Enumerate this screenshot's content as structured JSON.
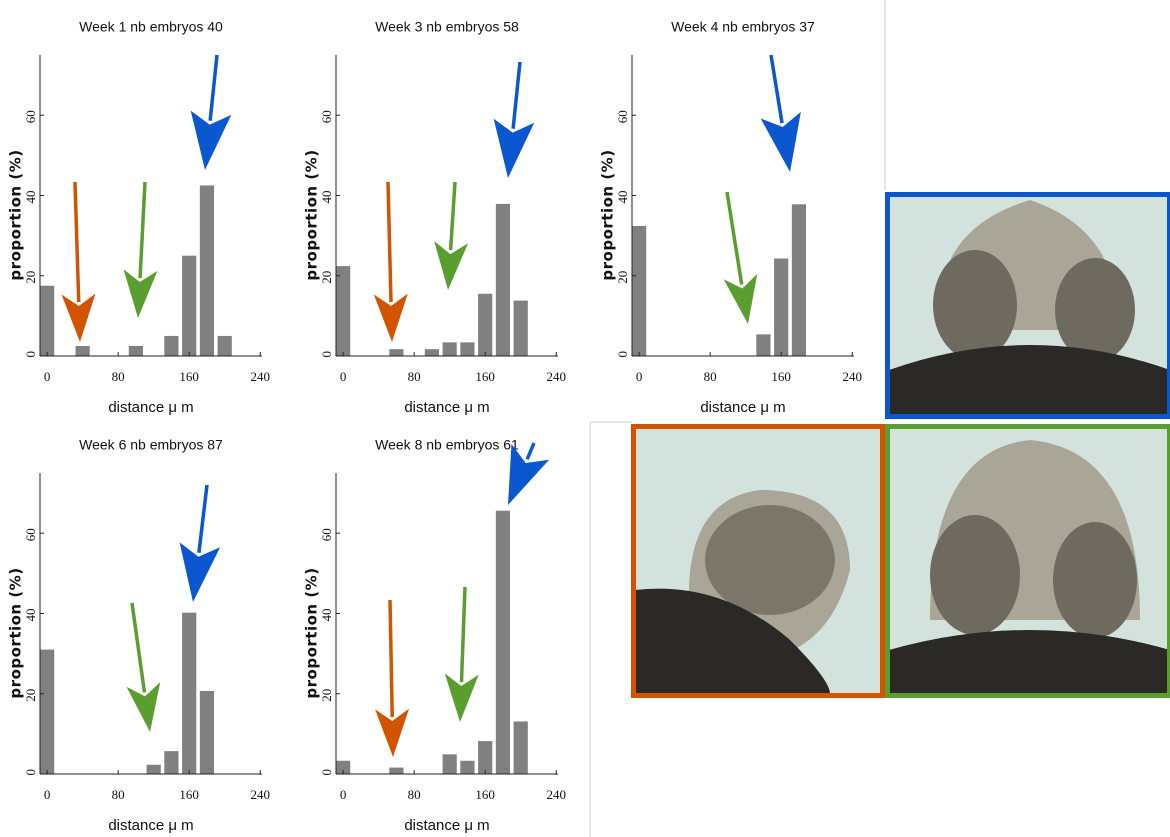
{
  "chart_data": [
    {
      "type": "bar",
      "title": "Week 1 nb embryos 40",
      "xlabel": "distance μ m",
      "ylabel": "proportion (%)",
      "color": "#808080",
      "x": [
        0,
        20,
        40,
        60,
        80,
        100,
        120,
        140,
        160,
        180,
        200
      ],
      "values": [
        17.5,
        0,
        2.5,
        0,
        0,
        2.5,
        0,
        5,
        25,
        42.5,
        5
      ],
      "xlim": [
        -8,
        242
      ],
      "ylim": [
        0,
        75
      ],
      "xticks": [
        0,
        80,
        160,
        240
      ],
      "yticks": [
        0,
        20,
        40,
        60
      ]
    },
    {
      "type": "bar",
      "title": "Week 3 nb embryos 58",
      "xlabel": "distance μ m",
      "ylabel": "proportion (%)",
      "color": "#808080",
      "x": [
        0,
        20,
        40,
        60,
        80,
        100,
        120,
        140,
        160,
        180,
        200
      ],
      "values": [
        22.4,
        0,
        0,
        1.7,
        0,
        1.7,
        3.4,
        3.4,
        15.5,
        37.9,
        13.8
      ],
      "xlim": [
        -8,
        242
      ],
      "ylim": [
        0,
        75
      ],
      "xticks": [
        0,
        80,
        160,
        240
      ],
      "yticks": [
        0,
        20,
        40,
        60
      ]
    },
    {
      "type": "bar",
      "title": "Week 4 nb embryos 37",
      "xlabel": "distance μ m",
      "ylabel": "proportion (%)",
      "color": "#808080",
      "x": [
        0,
        20,
        40,
        60,
        80,
        100,
        120,
        140,
        160,
        180,
        200
      ],
      "values": [
        32.4,
        0,
        0,
        0,
        0,
        0,
        0,
        5.4,
        24.3,
        37.8,
        0
      ],
      "xlim": [
        -8,
        242
      ],
      "ylim": [
        0,
        75
      ],
      "xticks": [
        0,
        80,
        160,
        240
      ],
      "yticks": [
        0,
        20,
        40,
        60
      ]
    },
    {
      "type": "bar",
      "title": "Week 6 nb embryos 87",
      "xlabel": "distance μ m",
      "ylabel": "proportion (%)",
      "color": "#808080",
      "x": [
        0,
        20,
        40,
        60,
        80,
        100,
        120,
        140,
        160,
        180,
        200
      ],
      "values": [
        31,
        0,
        0,
        0,
        0,
        0,
        2.3,
        5.7,
        40.2,
        20.7,
        0
      ],
      "xlim": [
        -8,
        242
      ],
      "ylim": [
        0,
        75
      ],
      "xticks": [
        0,
        80,
        160,
        240
      ],
      "yticks": [
        0,
        20,
        40,
        60
      ]
    },
    {
      "type": "bar",
      "title": "Week 8 nb embryos 61",
      "xlabel": "distance μ m",
      "ylabel": "proportion (%)",
      "color": "#808080",
      "x": [
        0,
        20,
        40,
        60,
        80,
        100,
        120,
        140,
        160,
        180,
        200
      ],
      "values": [
        3.3,
        0,
        0,
        1.6,
        0,
        0,
        4.9,
        3.3,
        8.2,
        65.6,
        13.1
      ],
      "xlim": [
        -8,
        242
      ],
      "ylim": [
        0,
        75
      ],
      "xticks": [
        0,
        80,
        160,
        240
      ],
      "yticks": [
        0,
        20,
        40,
        60
      ]
    }
  ]
}
